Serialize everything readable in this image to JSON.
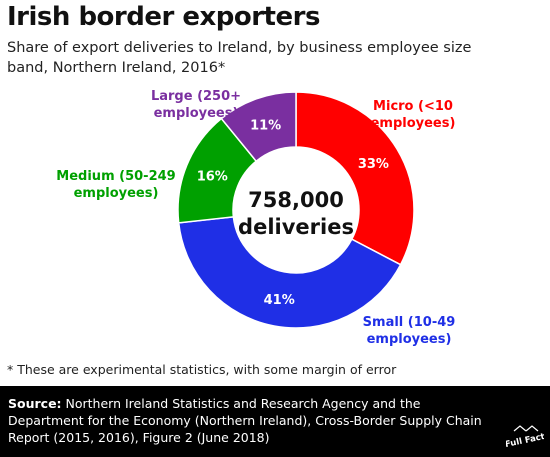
{
  "header": {
    "title": "Irish border exporters",
    "subtitle": "Share of export deliveries to Ireland, by business employee size band, Northern Ireland, 2016*"
  },
  "center_label": {
    "line1": "758,000",
    "line2": "deliveries"
  },
  "chart_data": {
    "type": "pie",
    "donut": true,
    "total": "758,000 deliveries",
    "slices": [
      {
        "name": "Micro (<10 employees)",
        "label_lines": [
          "Micro (<10",
          "employees)"
        ],
        "value": 33,
        "value_label": "33%",
        "color": "#ff0000"
      },
      {
        "name": "Small (10-49 employees)",
        "label_lines": [
          "Small (10-49",
          "employees)"
        ],
        "value": 41,
        "value_label": "41%",
        "color": "#1f2fe6"
      },
      {
        "name": "Medium (50-249 employees)",
        "label_lines": [
          "Medium (50-249",
          "employees)"
        ],
        "value": 16,
        "value_label": "16%",
        "color": "#00a000"
      },
      {
        "name": "Large (250+ employees)",
        "label_lines": [
          "Large (250+",
          "employees)"
        ],
        "value": 11,
        "value_label": "11%",
        "color": "#7a2fa0"
      }
    ]
  },
  "footnote": "* These are experimental statistics, with some margin of error",
  "source": {
    "label": "Source:",
    "text": " Northern Ireland Statistics and Research Agency and the Department for the Economy (Northern Ireland), Cross-Border Supply Chain Report (2015, 2016), Figure 2 (June 2018)"
  },
  "logo": {
    "text": "Full Fact",
    "icon": "full-fact-logo-icon",
    "color": "#ffffff"
  }
}
